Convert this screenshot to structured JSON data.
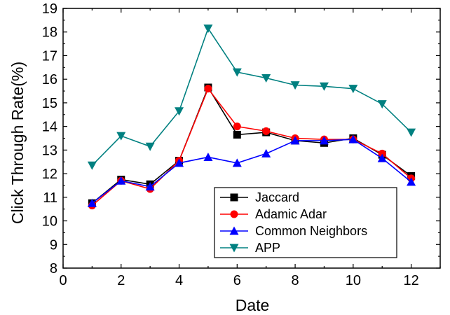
{
  "chart_data": {
    "type": "line",
    "title": "",
    "xlabel": "Date",
    "ylabel": "Click Through Rate(%)",
    "xlim": [
      0,
      13
    ],
    "ylim": [
      8,
      19
    ],
    "xticks": [
      0,
      2,
      4,
      6,
      8,
      10,
      12
    ],
    "yticks": [
      8,
      9,
      10,
      11,
      12,
      13,
      14,
      15,
      16,
      17,
      18,
      19
    ],
    "grid": false,
    "legend_position": "bottom-right",
    "x": [
      1,
      2,
      3,
      4,
      5,
      6,
      7,
      8,
      9,
      10,
      11,
      12
    ],
    "series": [
      {
        "name": "Jaccard",
        "color": "#000000",
        "marker": "square",
        "values": [
          10.75,
          11.75,
          11.55,
          12.55,
          15.65,
          13.65,
          13.75,
          13.4,
          13.3,
          13.5,
          12.8,
          11.9
        ]
      },
      {
        "name": "Adamic Adar",
        "color": "#ff0000",
        "marker": "circle",
        "values": [
          10.65,
          11.7,
          11.35,
          12.55,
          15.6,
          14.0,
          13.8,
          13.5,
          13.45,
          13.45,
          12.85,
          11.8
        ]
      },
      {
        "name": "Common Neighbors",
        "color": "#0000ff",
        "marker": "triangle-up",
        "values": [
          10.75,
          11.7,
          11.45,
          12.45,
          12.7,
          12.45,
          12.85,
          13.4,
          13.4,
          13.45,
          12.65,
          11.65
        ]
      },
      {
        "name": "APP",
        "color": "#008080",
        "marker": "triangle-down",
        "values": [
          12.35,
          13.6,
          13.15,
          14.65,
          18.15,
          16.3,
          16.05,
          15.75,
          15.7,
          15.6,
          14.95,
          13.75
        ]
      }
    ]
  }
}
